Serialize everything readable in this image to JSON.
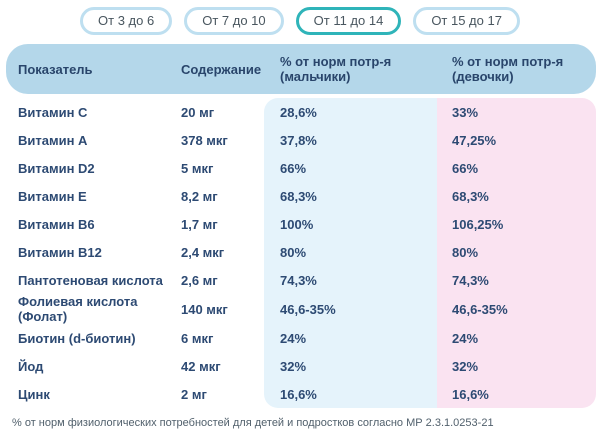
{
  "tabs": [
    {
      "label": "От 3 до 6",
      "active": false
    },
    {
      "label": "От 7 до 10",
      "active": false
    },
    {
      "label": "От 11 до 14",
      "active": true
    },
    {
      "label": "От 15 до 17",
      "active": false
    }
  ],
  "table": {
    "headers": {
      "indicator": "Показатель",
      "content": "Содержание",
      "boys_line1": "% от норм потр-я",
      "boys_line2": "(мальчики)",
      "girls_line1": "% от норм потр-я",
      "girls_line2": "(девочки)"
    },
    "rows": [
      {
        "indicator": "Витамин C",
        "content": "20 мг",
        "boys": "28,6%",
        "girls": "33%"
      },
      {
        "indicator": "Витамин A",
        "content": "378 мкг",
        "boys": "37,8%",
        "girls": "47,25%"
      },
      {
        "indicator": "Витамин D2",
        "content": "5 мкг",
        "boys": "66%",
        "girls": "66%"
      },
      {
        "indicator": "Витамин E",
        "content": "8,2 мг",
        "boys": "68,3%",
        "girls": "68,3%"
      },
      {
        "indicator": "Витамин B6",
        "content": "1,7 мг",
        "boys": "100%",
        "girls": "106,25%"
      },
      {
        "indicator": "Витамин B12",
        "content": "2,4 мкг",
        "boys": "80%",
        "girls": "80%"
      },
      {
        "indicator": "Пантотеновая кислота",
        "content": "2,6 мг",
        "boys": "74,3%",
        "girls": "74,3%"
      },
      {
        "indicator": "Фолиевая кислота (Фолат)",
        "content": "140 мкг",
        "boys": "46,6-35%",
        "girls": "46,6-35%"
      },
      {
        "indicator": "Биотин (d-биотин)",
        "content": "6 мкг",
        "boys": "24%",
        "girls": "24%"
      },
      {
        "indicator": "Йод",
        "content": "42 мкг",
        "boys": "32%",
        "girls": "32%"
      },
      {
        "indicator": "Цинк",
        "content": "2 мг",
        "boys": "16,6%",
        "girls": "16,6%"
      }
    ]
  },
  "footnote": "% от норм физиологических потребностей для детей и подростков согласно МР 2.3.1.0253-21",
  "colors": {
    "header_bg": "#b4d7ea",
    "boys_panel_bg": "#e5f3fb",
    "girls_panel_bg": "#fae3f1",
    "body_text": "#2d4a73",
    "tab_border_active": "#2fb4b9",
    "tab_border_inactive": "#bedff0"
  }
}
